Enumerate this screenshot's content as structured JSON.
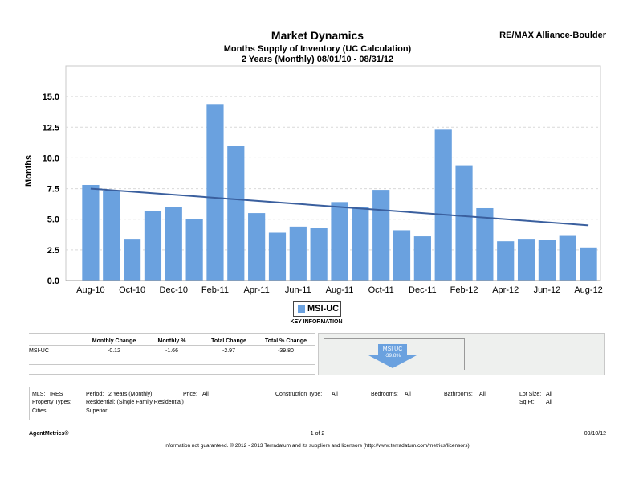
{
  "header": {
    "title": "Market Dynamics",
    "subtitle": "Months Supply of Inventory (UC Calculation)",
    "subtitle2": "2 Years (Monthly) 08/01/10 - 08/31/12",
    "brand": "RE/MAX Alliance-Boulder"
  },
  "chart_data": {
    "type": "bar",
    "ylabel": "Months",
    "ylim": [
      0,
      17.5
    ],
    "yticks": [
      0,
      2.5,
      5,
      7.5,
      10,
      12.5,
      15
    ],
    "ytick_labels": [
      "0.0",
      "2.5",
      "5.0",
      "7.5",
      "10.0",
      "12.5",
      "15.0"
    ],
    "grid": true,
    "categories": [
      "Aug-10",
      "Sep-10",
      "Oct-10",
      "Nov-10",
      "Dec-10",
      "Jan-11",
      "Feb-11",
      "Mar-11",
      "Apr-11",
      "May-11",
      "Jun-11",
      "Jul-11",
      "Aug-11",
      "Sep-11",
      "Oct-11",
      "Nov-11",
      "Dec-11",
      "Jan-12",
      "Feb-12",
      "Mar-12",
      "Apr-12",
      "May-12",
      "Jun-12",
      "Jul-12",
      "Aug-12"
    ],
    "xtick_labels": [
      "Aug-10",
      "",
      "Oct-10",
      "",
      "Dec-10",
      "",
      "Feb-11",
      "",
      "Apr-11",
      "",
      "Jun-11",
      "",
      "Aug-11",
      "",
      "Oct-11",
      "",
      "Dec-11",
      "",
      "Feb-12",
      "",
      "Apr-12",
      "",
      "Jun-12",
      "",
      "Aug-12"
    ],
    "series": [
      {
        "name": "MSI-UC",
        "color": "#6aa1df",
        "values": [
          7.8,
          7.3,
          3.4,
          5.7,
          6.0,
          5.0,
          14.4,
          11.0,
          5.5,
          3.9,
          4.4,
          4.3,
          6.4,
          6.0,
          7.4,
          4.1,
          3.6,
          12.3,
          9.4,
          5.9,
          3.2,
          3.4,
          3.3,
          3.7,
          2.7
        ]
      }
    ],
    "trendline": {
      "start": 7.5,
      "end": 4.5,
      "color": "#3a5f9e"
    }
  },
  "legend": {
    "label": "MSI-UC"
  },
  "key_info": "KEY INFORMATION",
  "metrics": {
    "headers": [
      "",
      "Monthly Change",
      "Monthly %",
      "Total Change",
      "Total % Change"
    ],
    "row": [
      "MSI-UC",
      "-0.12",
      "-1.66",
      "-2.97",
      "-39.80"
    ]
  },
  "trend_badge": {
    "label": "MSI UC",
    "value": "-39.8%",
    "color": "#6aa1df"
  },
  "criteria": {
    "mls_label": "MLS:",
    "mls_value": "IRES",
    "period_label": "Period:",
    "period_value": "2 Years (Monthly)",
    "price_label": "Price:",
    "price_value": "All",
    "construction_label": "Construction Type:",
    "construction_value": "All",
    "bedrooms_label": "Bedrooms:",
    "bedrooms_value": "All",
    "bathrooms_label": "Bathrooms:",
    "bathrooms_value": "All",
    "lotsize_label": "Lot Size:",
    "lotsize_value": "All",
    "property_label": "Property Types:",
    "property_value": "Residential: (Single Family Residential)",
    "sqft_label": "Sq Ft:",
    "sqft_value": "All",
    "cities_label": "Cities:",
    "cities_value": "Superior"
  },
  "footer": {
    "left": "AgentMetrics®",
    "center": "1 of 2",
    "right": "09/10/12",
    "disclaimer": "Information not guaranteed.  © 2012 - 2013 Terradatum and its suppliers and licensors (http://www.terradatum.com/metrics/licensors)."
  }
}
